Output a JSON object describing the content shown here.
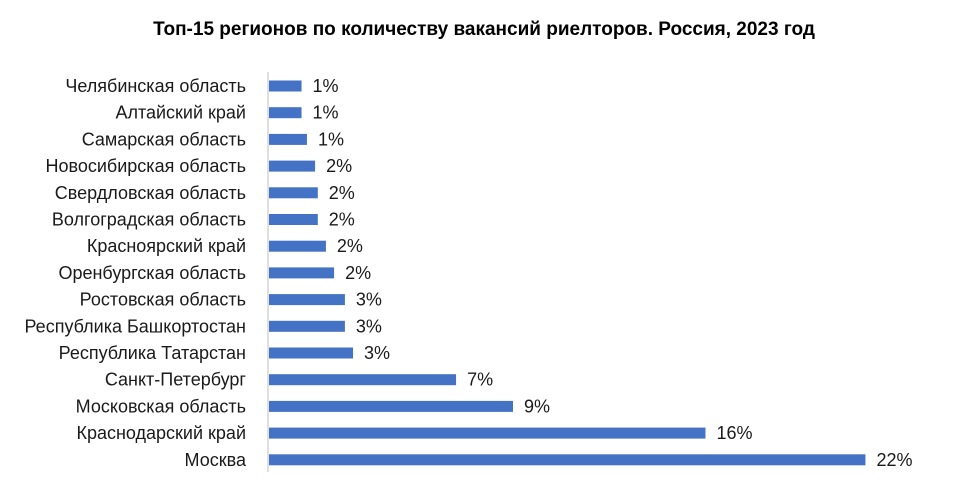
{
  "chart_data": {
    "type": "bar",
    "orientation": "horizontal",
    "title": "Топ-15 регионов по количеству вакансий риелторов. Россия,  2023 год",
    "categories": [
      "Челябинская область",
      "Алтайский край",
      "Самарская область",
      "Новосибирская область",
      "Свердловская область",
      "Волгоградская область",
      "Красноярский край",
      "Оренбургская область",
      "Ростовская область",
      "Республика Башкортостан",
      "Республика Татарстан",
      "Санкт-Петербург",
      "Московская область",
      "Краснодарский край",
      "Москва"
    ],
    "values": [
      1.2,
      1.2,
      1.4,
      1.7,
      1.8,
      1.8,
      2.1,
      2.4,
      2.8,
      2.8,
      3.1,
      6.9,
      9.0,
      16.1,
      22.0
    ],
    "value_labels": [
      "1%",
      "1%",
      "1%",
      "2%",
      "2%",
      "2%",
      "2%",
      "2%",
      "3%",
      "3%",
      "3%",
      "7%",
      "9%",
      "16%",
      "22%"
    ],
    "xlim": [
      0,
      22.5
    ],
    "grid": false,
    "legend": "none",
    "bar_color": "#4472C4",
    "axis_color": "#bfbfbf"
  }
}
